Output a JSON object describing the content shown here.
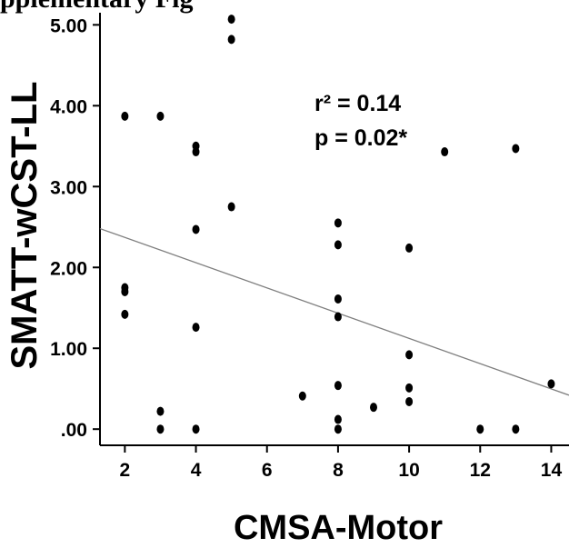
{
  "header_fragment": "pplementary Fig",
  "chart_data": {
    "type": "scatter",
    "title": "",
    "xlabel": "CMSA-Motor",
    "ylabel": "SMATT-wCST-LL",
    "xlim": [
      1.3,
      14.5
    ],
    "ylim": [
      -0.2,
      5.15
    ],
    "xticks": [
      2,
      4,
      6,
      8,
      10,
      12,
      14
    ],
    "yticks": [
      0,
      1,
      2,
      3,
      4,
      5
    ],
    "ytick_labels": [
      ".00",
      "1.00",
      "2.00",
      "3.00",
      "4.00",
      "5.00"
    ],
    "grid": false,
    "legend": "none",
    "annotations": {
      "r2": "r² = 0.14",
      "p": "p = 0.02*"
    },
    "points": [
      {
        "x": 2,
        "y": 3.87
      },
      {
        "x": 2,
        "y": 1.75
      },
      {
        "x": 2,
        "y": 1.7
      },
      {
        "x": 2,
        "y": 1.42
      },
      {
        "x": 3,
        "y": 3.87
      },
      {
        "x": 3,
        "y": 0.22
      },
      {
        "x": 3,
        "y": 0.0
      },
      {
        "x": 4,
        "y": 3.5
      },
      {
        "x": 4,
        "y": 3.43
      },
      {
        "x": 4,
        "y": 2.47
      },
      {
        "x": 4,
        "y": 1.26
      },
      {
        "x": 4,
        "y": 0.0
      },
      {
        "x": 5,
        "y": 5.07
      },
      {
        "x": 5,
        "y": 4.82
      },
      {
        "x": 5,
        "y": 2.75
      },
      {
        "x": 7,
        "y": 0.41
      },
      {
        "x": 8,
        "y": 2.55
      },
      {
        "x": 8,
        "y": 2.28
      },
      {
        "x": 8,
        "y": 1.61
      },
      {
        "x": 8,
        "y": 1.39
      },
      {
        "x": 8,
        "y": 0.54
      },
      {
        "x": 8,
        "y": 0.12
      },
      {
        "x": 8,
        "y": 0.0
      },
      {
        "x": 9,
        "y": 0.27
      },
      {
        "x": 10,
        "y": 2.24
      },
      {
        "x": 10,
        "y": 0.92
      },
      {
        "x": 10,
        "y": 0.51
      },
      {
        "x": 10,
        "y": 0.34
      },
      {
        "x": 11,
        "y": 3.43
      },
      {
        "x": 12,
        "y": 0.0
      },
      {
        "x": 13,
        "y": 3.47
      },
      {
        "x": 13,
        "y": 0.0
      },
      {
        "x": 14,
        "y": 0.56
      }
    ],
    "fit_line": {
      "x": [
        1.3,
        14.5
      ],
      "y": [
        2.48,
        0.42
      ]
    },
    "colors": {
      "points": "#000000",
      "fit_line": "#7f7f7f",
      "axis": "#000000"
    }
  }
}
